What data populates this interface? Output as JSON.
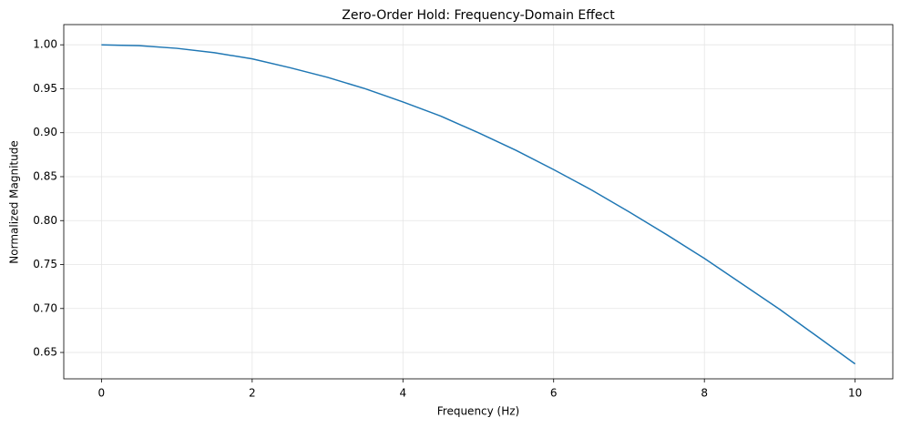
{
  "chart_data": {
    "type": "line",
    "title": "Zero-Order Hold: Frequency-Domain Effect",
    "x_label": "Frequency (Hz)",
    "y_label": "Normalized Magnitude",
    "x": [
      0,
      0.5,
      1,
      1.5,
      2,
      2.5,
      3,
      3.5,
      4,
      4.5,
      5,
      5.5,
      6,
      6.5,
      7,
      7.5,
      8,
      8.5,
      9,
      9.5,
      10
    ],
    "series": [
      {
        "color": "#1f77b4",
        "values": [
          1.0,
          0.999,
          0.996,
          0.991,
          0.984,
          0.974,
          0.963,
          0.95,
          0.935,
          0.919,
          0.9,
          0.88,
          0.858,
          0.835,
          0.81,
          0.784,
          0.757,
          0.728,
          0.699,
          0.668,
          0.637
        ]
      }
    ],
    "xlim": [
      -0.5,
      10.5
    ],
    "xticks": [
      0,
      2,
      4,
      6,
      8,
      10
    ],
    "ylim": [
      0.62,
      1.023
    ],
    "yticks": [
      {
        "value": 0.65,
        "label": "0.65"
      },
      {
        "value": 0.7,
        "label": "0.70"
      },
      {
        "value": 0.75,
        "label": "0.75"
      },
      {
        "value": 0.8,
        "label": "0.80"
      },
      {
        "value": 0.85,
        "label": "0.85"
      },
      {
        "value": 0.9,
        "label": "0.90"
      },
      {
        "value": 0.95,
        "label": "0.95"
      },
      {
        "value": 1.0,
        "label": "1.00"
      }
    ],
    "grid": true
  }
}
